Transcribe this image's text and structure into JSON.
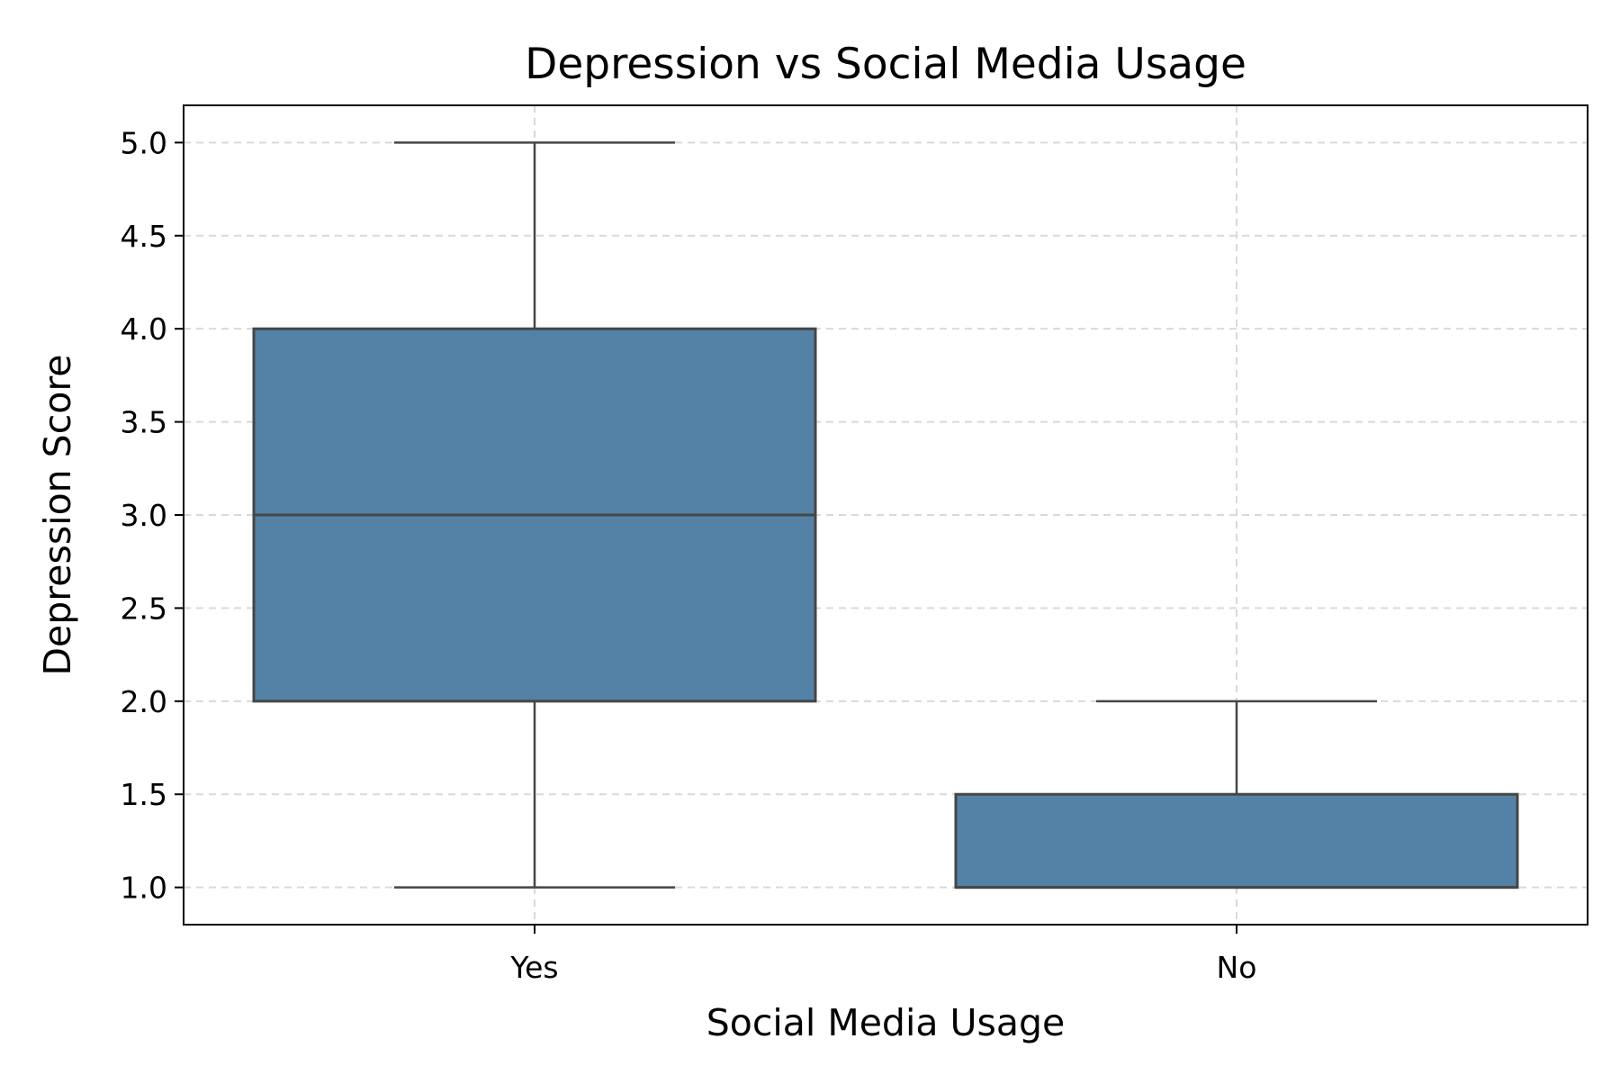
{
  "chart_data": {
    "type": "box",
    "title": "Depression vs Social Media Usage",
    "xlabel": "Social Media Usage",
    "ylabel": "Depression Score",
    "categories": [
      "Yes",
      "No"
    ],
    "boxes": [
      {
        "category": "Yes",
        "whisker_low": 1.0,
        "q1": 2.0,
        "median": 3.0,
        "q3": 4.0,
        "whisker_high": 5.0
      },
      {
        "category": "No",
        "whisker_low": 1.0,
        "q1": 1.0,
        "median": 1.0,
        "q3": 1.5,
        "whisker_high": 2.0
      }
    ],
    "ylim": [
      0.8,
      5.2
    ],
    "yticks": [
      "1.0",
      "1.5",
      "2.0",
      "2.5",
      "3.0",
      "3.5",
      "4.0",
      "4.5",
      "5.0"
    ],
    "grid": true,
    "colors": {
      "box_fill": "#5482a6",
      "box_edge": "#464646",
      "grid": "#d9d9d9",
      "axis": "#000000"
    }
  }
}
